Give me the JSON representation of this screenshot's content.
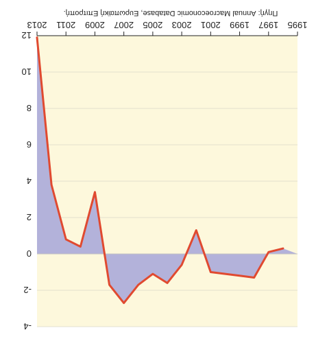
{
  "chart_data": {
    "type": "area",
    "orientation": "rotated-180",
    "source_note": "Πηγή: Annual Macroeconomic Database, Ευρωπαϊκή Επιτροπή.",
    "x_ticks": [
      "1995",
      "1997",
      "1999",
      "2001",
      "2003",
      "2005",
      "2007",
      "2009",
      "2011",
      "2013"
    ],
    "y_ticks": [
      -4,
      -2,
      0,
      2,
      4,
      6,
      8,
      10,
      12
    ],
    "ylim": [
      -4,
      12
    ],
    "grid": true,
    "x": [
      1995,
      1996,
      1997,
      1998,
      1999,
      2000,
      2001,
      2002,
      2003,
      2004,
      2005,
      2006,
      2007,
      2008,
      2009,
      2010,
      2011,
      2012,
      2013
    ],
    "series": [
      {
        "values": [
          0.0,
          0.3,
          0.1,
          -1.3,
          -1.2,
          -1.1,
          -1.0,
          1.3,
          -0.6,
          -1.6,
          -1.1,
          -1.7,
          -2.7,
          -1.7,
          3.4,
          0.4,
          0.8,
          3.8,
          11.9
        ]
      }
    ],
    "colors": {
      "plot_background": "#fdf8dc",
      "area_fill": "#b3b2da",
      "line": "#e04a30",
      "grid": "#d8d8c8"
    }
  }
}
